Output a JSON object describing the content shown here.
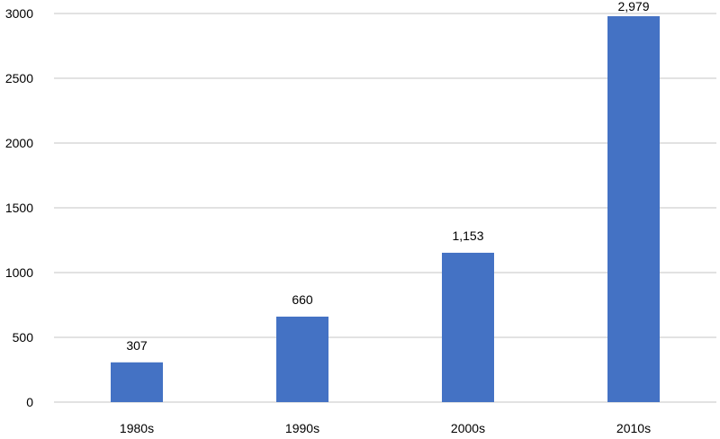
{
  "chart_data": {
    "type": "bar",
    "categories": [
      "1980s",
      "1990s",
      "2000s",
      "2010s"
    ],
    "values": [
      307,
      660,
      1153,
      2979
    ],
    "data_labels": [
      "307",
      "660",
      "1,153",
      "2,979"
    ],
    "yticks": [
      0,
      500,
      1000,
      1500,
      2000,
      2500,
      3000
    ],
    "ytick_labels": [
      "0",
      "500",
      "1000",
      "1500",
      "2000",
      "2500",
      "3000"
    ],
    "ylim": [
      0,
      3000
    ],
    "grid": true,
    "bar_color": "#4472C4",
    "grid_color": "#D9D9D9"
  }
}
